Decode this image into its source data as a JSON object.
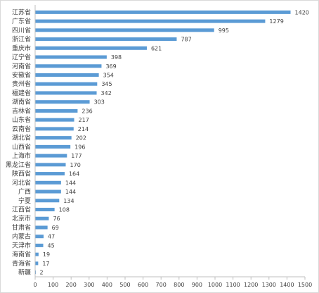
{
  "chart_data": {
    "type": "bar",
    "orientation": "horizontal",
    "title": "",
    "xlabel": "",
    "ylabel": "",
    "xlim": [
      0,
      1500
    ],
    "x_ticks": [
      0,
      100,
      200,
      300,
      400,
      500,
      600,
      700,
      800,
      900,
      1000,
      1100,
      1200,
      1300,
      1400,
      1500
    ],
    "grid": false,
    "legend": "none",
    "bar_color": "#5B9BD5",
    "categories": [
      "江苏省",
      "广东省",
      "四川省",
      "浙江省",
      "重庆市",
      "辽宁省",
      "河南省",
      "安徽省",
      "贵州省",
      "福建省",
      "湖南省",
      "吉林省",
      "山东省",
      "云南省",
      "湖北省",
      "山西省",
      "上海市",
      "黑龙江省",
      "陕西省",
      "河北省",
      "广西",
      "宁夏",
      "江西省",
      "北京市",
      "甘肃省",
      "内蒙古",
      "天津市",
      "海南省",
      "青海省",
      "新疆"
    ],
    "values": [
      1420,
      1279,
      995,
      787,
      621,
      398,
      369,
      354,
      345,
      342,
      303,
      236,
      217,
      214,
      202,
      196,
      177,
      170,
      164,
      144,
      144,
      134,
      108,
      76,
      69,
      47,
      45,
      19,
      17,
      2
    ]
  }
}
